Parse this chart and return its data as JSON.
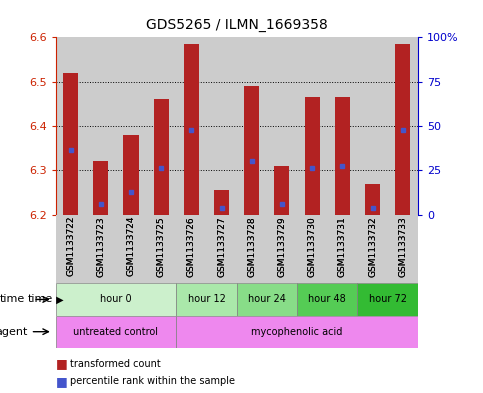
{
  "title": "GDS5265 / ILMN_1669358",
  "samples": [
    "GSM1133722",
    "GSM1133723",
    "GSM1133724",
    "GSM1133725",
    "GSM1133726",
    "GSM1133727",
    "GSM1133728",
    "GSM1133729",
    "GSM1133730",
    "GSM1133731",
    "GSM1133732",
    "GSM1133733"
  ],
  "bar_tops": [
    6.52,
    6.32,
    6.38,
    6.46,
    6.585,
    6.255,
    6.49,
    6.31,
    6.465,
    6.465,
    6.27,
    6.585
  ],
  "bar_bottoms": [
    6.2,
    6.2,
    6.2,
    6.2,
    6.2,
    6.2,
    6.2,
    6.2,
    6.2,
    6.2,
    6.2,
    6.2
  ],
  "blue_dots": [
    6.345,
    6.225,
    6.25,
    6.305,
    6.39,
    6.215,
    6.32,
    6.225,
    6.305,
    6.31,
    6.215,
    6.39
  ],
  "ylim": [
    6.2,
    6.6
  ],
  "yticks": [
    6.2,
    6.3,
    6.4,
    6.5,
    6.6
  ],
  "right_yticks_pct": [
    0,
    25,
    50,
    75,
    100
  ],
  "right_ylabels": [
    "0",
    "25",
    "50",
    "75",
    "100%"
  ],
  "bar_color": "#b22222",
  "blue_color": "#4455cc",
  "time_groups": [
    {
      "label": "hour 0",
      "start": 0,
      "end": 4,
      "color": "#ccf0cc"
    },
    {
      "label": "hour 12",
      "start": 4,
      "end": 6,
      "color": "#aae8aa"
    },
    {
      "label": "hour 24",
      "start": 6,
      "end": 8,
      "color": "#88dd88"
    },
    {
      "label": "hour 48",
      "start": 8,
      "end": 10,
      "color": "#55cc55"
    },
    {
      "label": "hour 72",
      "start": 10,
      "end": 12,
      "color": "#33bb33"
    }
  ],
  "agent_groups": [
    {
      "label": "untreated control",
      "start": 0,
      "end": 4,
      "color": "#ee88ee"
    },
    {
      "label": "mycophenolic acid",
      "start": 4,
      "end": 12,
      "color": "#ee88ee"
    }
  ],
  "bg_color": "#ffffff",
  "bar_bg_color": "#cccccc",
  "font_color_red": "#cc2200",
  "font_color_blue": "#0000cc",
  "grid_yticks": [
    6.3,
    6.4,
    6.5
  ]
}
